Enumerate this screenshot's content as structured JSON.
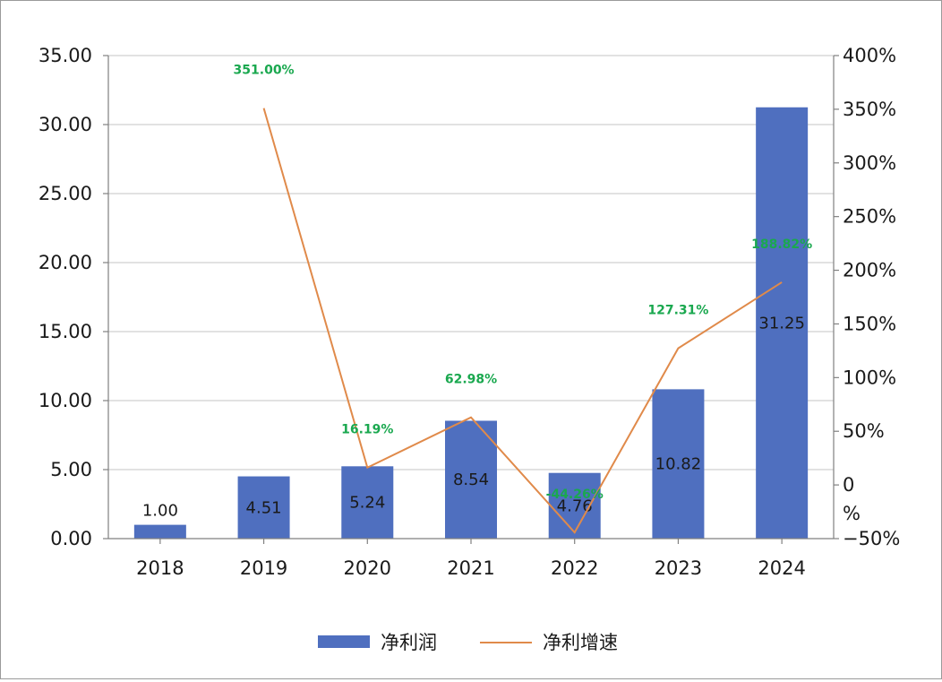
{
  "chart_data": {
    "type": "bar",
    "categories": [
      "2018",
      "2019",
      "2020",
      "2021",
      "2022",
      "2023",
      "2024"
    ],
    "series": [
      {
        "name": "净利润",
        "type": "bar",
        "axis": "left",
        "values": [
          1.0,
          4.51,
          5.24,
          8.54,
          4.76,
          10.82,
          31.25
        ],
        "labels": [
          "1.00",
          "4.51",
          "5.24",
          "8.54",
          "4.76",
          "10.82",
          "31.25"
        ]
      },
      {
        "name": "净利增速",
        "type": "line",
        "axis": "right",
        "values": [
          null,
          351.0,
          16.19,
          62.98,
          -44.26,
          127.31,
          188.82
        ],
        "labels": [
          "",
          "351.00%",
          "16.19%",
          "62.98%",
          "-44.26%",
          "127.31%",
          "188.82%"
        ]
      }
    ],
    "y_left": {
      "min": 0,
      "max": 35,
      "ticks": [
        "0.00",
        "5.00",
        "10.00",
        "15.00",
        "20.00",
        "25.00",
        "30.00",
        "35.00"
      ]
    },
    "y_right": {
      "min": -50,
      "max": 400,
      "ticks": [
        "−50%",
        "0\n%",
        "50%",
        "100%",
        "150%",
        "200%",
        "250%",
        "300%",
        "350%",
        "400%"
      ]
    },
    "grid": true,
    "legend": "bottom",
    "colors": {
      "bar": "#4f6fbf",
      "line": "#e08a4a",
      "growth_label": "#1aa84f",
      "grid": "#d9d9d9",
      "axis": "#808080"
    }
  }
}
